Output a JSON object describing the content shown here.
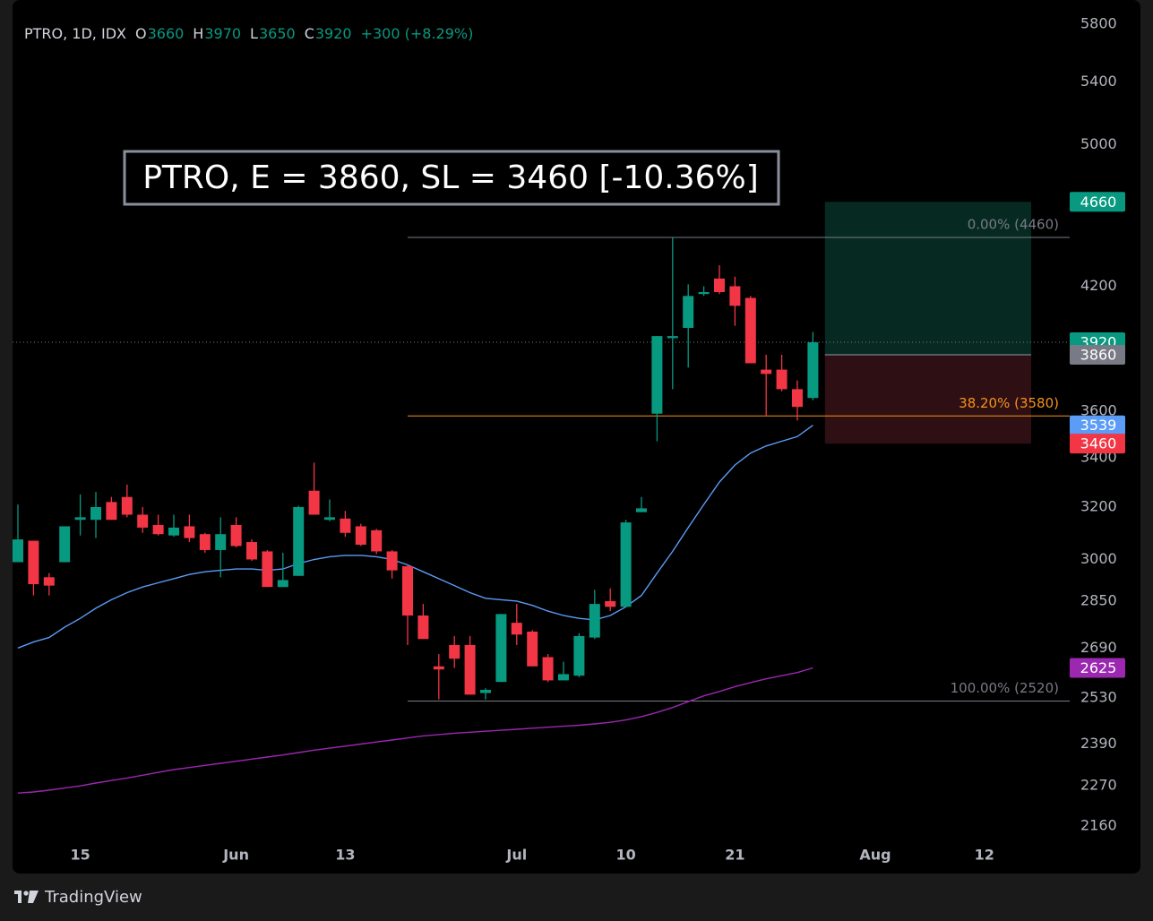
{
  "chart_data": {
    "type": "candlestick",
    "symbol": "PTRO, 1D, IDX",
    "ohlc_labels": [
      "O",
      "H",
      "L",
      "C"
    ],
    "change": "+300 (+8.29%)",
    "annotation": "PTRO, E = 3860, SL = 3460 [-10.36%]",
    "watermark": "TradingView",
    "categories": [
      null,
      null,
      null,
      null,
      "15",
      null,
      null,
      null,
      null,
      null,
      null,
      null,
      null,
      null,
      "Jun",
      null,
      null,
      null,
      null,
      null,
      null,
      "13",
      null,
      null,
      null,
      null,
      null,
      null,
      null,
      null,
      null,
      null,
      "Jul",
      null,
      null,
      null,
      null,
      null,
      null,
      "10",
      null,
      null,
      null,
      null,
      null,
      null,
      "21",
      null,
      null,
      null,
      null,
      null,
      null,
      null,
      null,
      "Aug",
      null,
      null,
      null,
      null,
      null,
      null,
      "12",
      null,
      null,
      null,
      null,
      null
    ],
    "open": [
      2990,
      3070,
      2935,
      2990,
      3150,
      3150,
      3220,
      3240,
      3170,
      3130,
      3090,
      3125,
      3095,
      3035,
      3130,
      3065,
      3030,
      2900,
      2940,
      3265,
      3150,
      3155,
      3125,
      3110,
      3030,
      2975,
      2800,
      2630,
      2700,
      2700,
      2545,
      2580,
      2775,
      2745,
      2660,
      2585,
      2600,
      2725,
      2850,
      2830,
      3180,
      3590,
      3940,
      3990,
      4160,
      4240,
      4200,
      4140,
      3790,
      3790,
      3700,
      3660,
      null,
      null,
      null,
      null,
      null,
      null,
      null,
      null,
      null,
      null,
      null,
      null,
      null,
      null,
      null,
      null
    ],
    "high": [
      3210,
      3070,
      2950,
      3125,
      3250,
      3260,
      3240,
      3290,
      3200,
      3170,
      3170,
      3170,
      3100,
      3160,
      3160,
      3075,
      3035,
      3025,
      3205,
      3380,
      3230,
      3185,
      3135,
      3115,
      3035,
      2980,
      2840,
      2670,
      2730,
      2730,
      2560,
      2805,
      2840,
      2750,
      2670,
      2645,
      2740,
      2890,
      2895,
      3150,
      3240,
      3950,
      4460,
      4210,
      4200,
      4310,
      4250,
      4150,
      3860,
      3860,
      3740,
      3970,
      null,
      null,
      null,
      null,
      null,
      null,
      null,
      null,
      null,
      null,
      null,
      null,
      null,
      null,
      null,
      null
    ],
    "low": [
      2990,
      2870,
      2870,
      2990,
      3090,
      3080,
      3150,
      3160,
      3100,
      3090,
      3085,
      3065,
      3025,
      2935,
      3045,
      2995,
      2900,
      2900,
      2940,
      3170,
      3145,
      3085,
      3050,
      3020,
      2930,
      2700,
      2720,
      2525,
      2625,
      2540,
      2525,
      2580,
      2700,
      2630,
      2580,
      2585,
      2595,
      2720,
      2815,
      2830,
      3180,
      3470,
      3700,
      3800,
      4150,
      4160,
      4000,
      3820,
      3580,
      3690,
      3560,
      3650,
      null,
      null,
      null,
      null,
      null,
      null,
      null,
      null,
      null,
      null,
      null,
      null,
      null,
      null,
      null,
      null
    ],
    "close": [
      3075,
      2910,
      2905,
      3125,
      3160,
      3200,
      3150,
      3170,
      3120,
      3095,
      3120,
      3080,
      3035,
      3095,
      3050,
      3000,
      2900,
      2925,
      3200,
      3170,
      3160,
      3100,
      3055,
      3030,
      2960,
      2800,
      2720,
      2620,
      2655,
      2540,
      2555,
      2805,
      2735,
      2630,
      2585,
      2605,
      2730,
      2840,
      2830,
      3140,
      3195,
      3950,
      3950,
      4150,
      4170,
      4170,
      4100,
      3820,
      3770,
      3700,
      3620,
      3920,
      null,
      null,
      null,
      null,
      null,
      null,
      null,
      null,
      null,
      null,
      null,
      null,
      null,
      null,
      null,
      null
    ],
    "up_color": "#089981",
    "down_color": "#f23645",
    "series": [
      {
        "color": "#5b9cf6",
        "values": [
          2690,
          2710,
          2725,
          2760,
          2790,
          2825,
          2855,
          2880,
          2900,
          2915,
          2930,
          2945,
          2955,
          2960,
          2965,
          2965,
          2960,
          2965,
          2985,
          3000,
          3010,
          3015,
          3015,
          3010,
          3000,
          2980,
          2955,
          2930,
          2905,
          2880,
          2860,
          2855,
          2850,
          2835,
          2815,
          2800,
          2790,
          2785,
          2800,
          2830,
          2870,
          2950,
          3030,
          3120,
          3210,
          3300,
          3370,
          3420,
          3450,
          3470,
          3490,
          3539,
          null,
          null,
          null,
          null,
          null,
          null,
          null,
          null,
          null,
          null,
          null,
          null,
          null,
          null,
          null,
          null
        ]
      },
      {
        "color": "#9c27b0",
        "values": [
          2250,
          2253,
          2258,
          2264,
          2270,
          2278,
          2285,
          2292,
          2300,
          2308,
          2316,
          2322,
          2328,
          2334,
          2340,
          2346,
          2352,
          2358,
          2365,
          2372,
          2378,
          2384,
          2390,
          2396,
          2402,
          2408,
          2414,
          2418,
          2422,
          2425,
          2428,
          2431,
          2434,
          2437,
          2440,
          2443,
          2446,
          2450,
          2455,
          2462,
          2472,
          2485,
          2500,
          2518,
          2536,
          2550,
          2565,
          2578,
          2590,
          2600,
          2610,
          2625,
          null,
          null,
          null,
          null,
          null,
          null,
          null,
          null,
          null,
          null,
          null,
          null,
          null,
          null,
          null,
          null
        ]
      }
    ],
    "fib_levels": [
      {
        "label": "0.00% (4460)",
        "value": 4460,
        "color": "#787b86"
      },
      {
        "label": "38.20% (3580)",
        "value": 3580,
        "color": "#f7931a"
      },
      {
        "label": "100.00% (2520)",
        "value": 2520,
        "color": "#787b86"
      }
    ],
    "position": {
      "target": 4660,
      "entry": 3860,
      "stop": 3460
    },
    "log_scale": true,
    "grid": false,
    "ylim": [
      2118,
      5975
    ],
    "yticks": [
      5800,
      5400,
      5000,
      4200,
      3600,
      3400,
      3200,
      3000,
      2850,
      2690,
      2530,
      2390,
      2270,
      2160
    ]
  }
}
